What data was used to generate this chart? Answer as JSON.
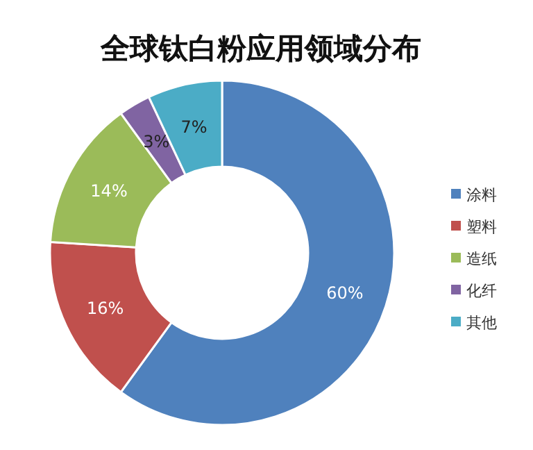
{
  "chart_data": {
    "type": "donut",
    "title": "全球钛白粉应用领域分布",
    "categories": [
      "涂料",
      "塑料",
      "造纸",
      "化纤",
      "其他"
    ],
    "values": [
      60,
      16,
      14,
      3,
      7
    ],
    "colors": [
      "#4f81bd",
      "#c0504d",
      "#9bbb59",
      "#8064a2",
      "#4bacc6"
    ],
    "value_labels": [
      "60%",
      "16%",
      "14%",
      "3%",
      "7%"
    ],
    "legend": "right"
  }
}
